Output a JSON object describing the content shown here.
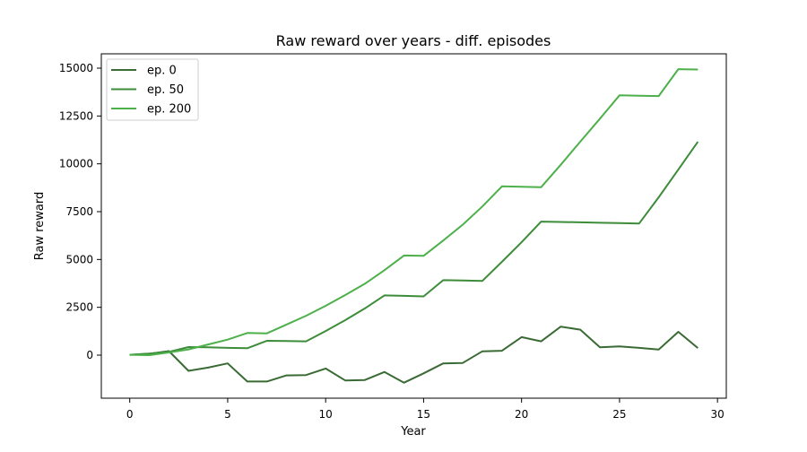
{
  "chart_data": {
    "type": "line",
    "title": "Raw reward over years - diff. episodes",
    "xlabel": "Year",
    "ylabel": "Raw reward",
    "xlim": [
      -1.45,
      30.45
    ],
    "ylim": [
      -2250,
      15750
    ],
    "xticks": [
      0,
      5,
      10,
      15,
      20,
      25,
      30
    ],
    "yticks": [
      0,
      2500,
      5000,
      7500,
      10000,
      12500,
      15000
    ],
    "xtick_labels": [
      "0",
      "5",
      "10",
      "15",
      "20",
      "25",
      "30"
    ],
    "ytick_labels": [
      "0",
      "2500",
      "5000",
      "7500",
      "10000",
      "12500",
      "15000"
    ],
    "grid": false,
    "legend": "top-left",
    "x": [
      0,
      1,
      2,
      3,
      4,
      5,
      6,
      7,
      8,
      9,
      10,
      11,
      12,
      13,
      14,
      15,
      16,
      17,
      18,
      19,
      20,
      21,
      22,
      23,
      24,
      25,
      26,
      27,
      28,
      29
    ],
    "series": [
      {
        "name": "ep. 0",
        "color": "#3a6b35",
        "values": [
          20,
          70,
          210,
          -820,
          -650,
          -430,
          -1380,
          -1380,
          -1060,
          -1040,
          -700,
          -1320,
          -1300,
          -880,
          -1440,
          -950,
          -430,
          -410,
          200,
          230,
          940,
          720,
          1490,
          1330,
          410,
          460,
          380,
          290,
          1220,
          370
        ]
      },
      {
        "name": "ep. 50",
        "color": "#3d8c3a",
        "values": [
          20,
          80,
          170,
          420,
          410,
          380,
          360,
          750,
          740,
          720,
          1260,
          1830,
          2440,
          3120,
          3100,
          3070,
          3920,
          3900,
          3880,
          4880,
          5900,
          6980,
          6960,
          6940,
          6920,
          6900,
          6880,
          8250,
          9700,
          11150
        ]
      },
      {
        "name": "ep. 200",
        "color": "#4db04a",
        "values": [
          20,
          0,
          140,
          300,
          560,
          810,
          1160,
          1140,
          1600,
          2060,
          2580,
          3140,
          3730,
          4440,
          5210,
          5190,
          5990,
          6820,
          7770,
          8820,
          8800,
          8780,
          9950,
          11160,
          12360,
          13580,
          13560,
          13540,
          14950,
          14930
        ]
      }
    ]
  }
}
